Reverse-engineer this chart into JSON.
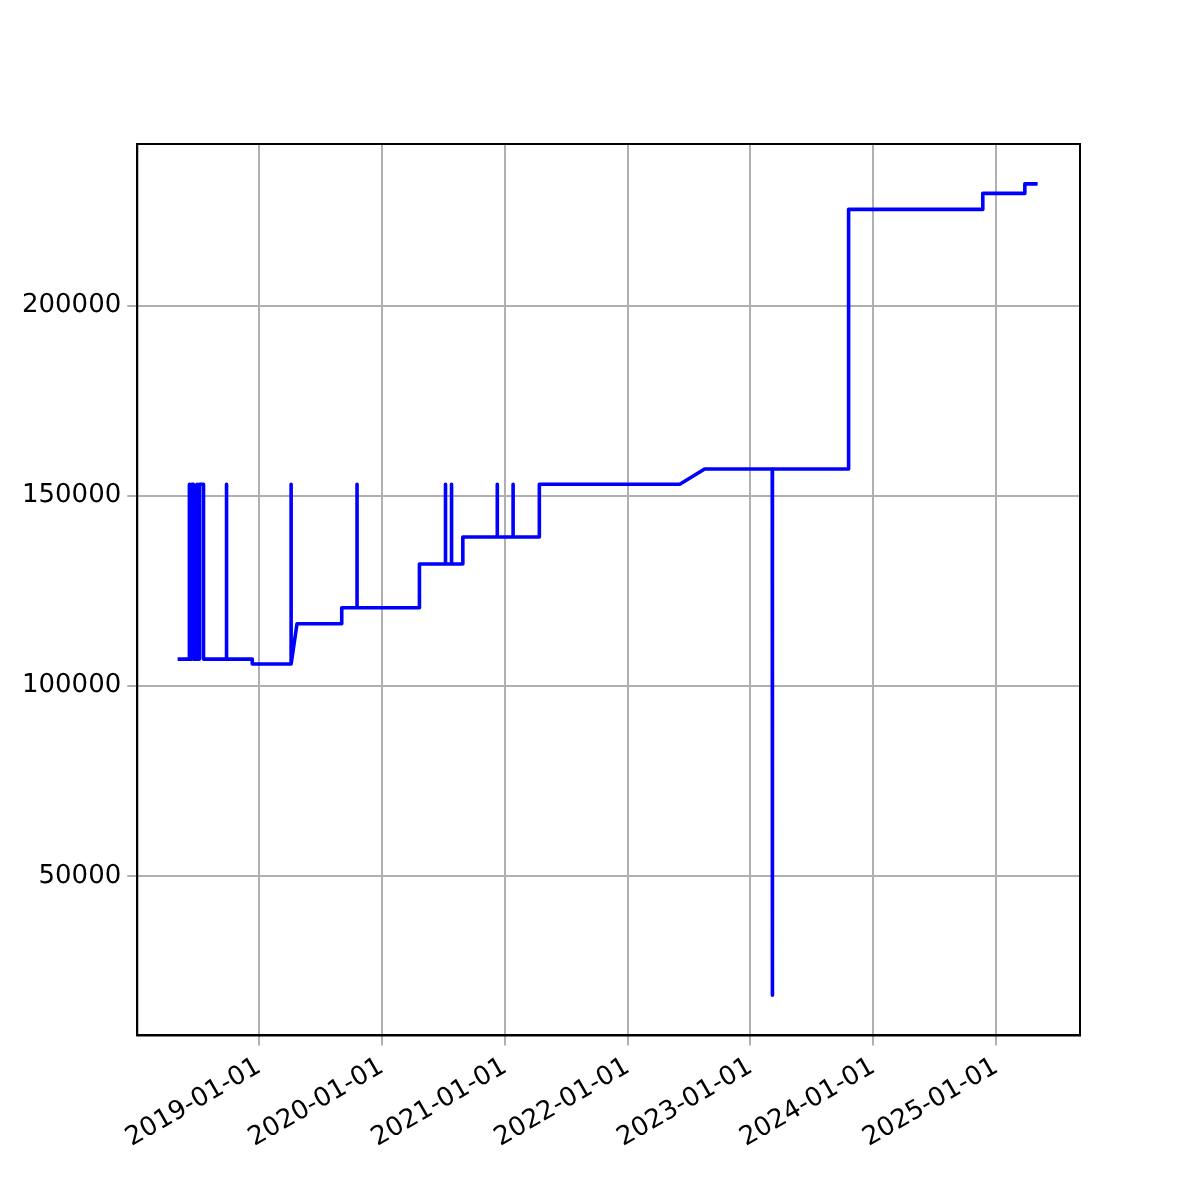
{
  "chart_data": {
    "type": "line",
    "xlim": [
      "2018-01-04",
      "2025-09-07"
    ],
    "ylim": [
      8000,
      242500
    ],
    "xticks": [
      "2019-01-01",
      "2020-01-01",
      "2021-01-01",
      "2022-01-01",
      "2023-01-01",
      "2024-01-01",
      "2025-01-01"
    ],
    "yticks": [
      50000,
      100000,
      150000,
      200000
    ],
    "grid": true,
    "marker": "none",
    "line_style": "solid",
    "series": [
      {
        "color": "#0000ff",
        "x": [
          "2018-05-04",
          "2018-06-06",
          "2018-06-06",
          "2018-06-09",
          "2018-06-09",
          "2018-06-15",
          "2018-06-15",
          "2018-06-20",
          "2018-06-20",
          "2018-06-28",
          "2018-06-28",
          "2018-07-02",
          "2018-07-02",
          "2018-07-08",
          "2018-07-08",
          "2018-07-20",
          "2018-07-20",
          "2018-09-26",
          "2018-09-26",
          "2018-09-27",
          "2018-12-12",
          "2018-12-12",
          "2019-04-06",
          "2019-04-06",
          "2019-04-07",
          "2019-04-24",
          "2019-09-04",
          "2019-09-04",
          "2019-10-19",
          "2019-10-19",
          "2019-10-20",
          "2020-04-22",
          "2020-04-22",
          "2020-07-08",
          "2020-07-08",
          "2020-07-09",
          "2020-07-26",
          "2020-07-26",
          "2020-07-27",
          "2020-08-29",
          "2020-08-29",
          "2020-12-09",
          "2020-12-09",
          "2020-12-10",
          "2021-01-25",
          "2021-01-25",
          "2021-01-26",
          "2021-04-11",
          "2021-04-11",
          "2021-04-13",
          "2021-04-15",
          "2021-04-15",
          "2022-06-05",
          "2022-08-18",
          "2023-03-07",
          "2023-03-07",
          "2023-03-08",
          "2023-10-20",
          "2023-10-20",
          "2024-11-22",
          "2024-11-22",
          "2025-03-27",
          "2025-03-27",
          "2025-05-04"
        ],
        "values": [
          107000,
          107000,
          153000,
          153000,
          107000,
          107000,
          153000,
          153000,
          107000,
          107000,
          153000,
          153000,
          107000,
          107000,
          153000,
          153000,
          107000,
          107000,
          153000,
          107000,
          107000,
          105700,
          105700,
          153000,
          105700,
          116300,
          116300,
          120500,
          120500,
          153000,
          120500,
          120500,
          132000,
          132000,
          153000,
          132000,
          132000,
          153000,
          132000,
          132000,
          139100,
          139100,
          153000,
          139100,
          139100,
          153000,
          139100,
          139100,
          153000,
          139100,
          139100,
          153000,
          153000,
          157000,
          157000,
          18600,
          157000,
          157000,
          225300,
          225300,
          229500,
          229500,
          232000,
          232000
        ]
      }
    ]
  }
}
